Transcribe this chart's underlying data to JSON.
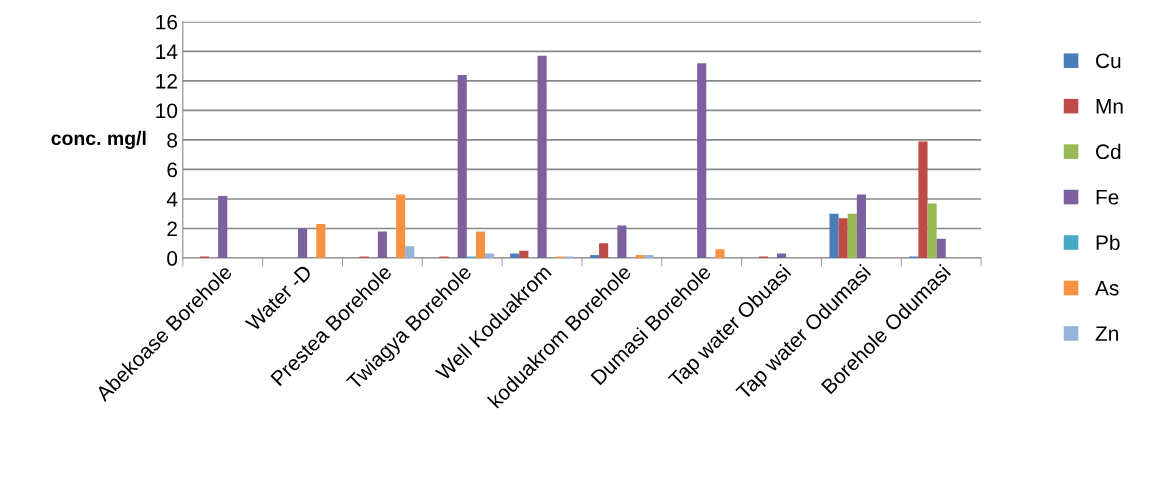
{
  "chart_data": {
    "type": "bar",
    "ylabel": "conc. mg/l",
    "categories": [
      "Abekoase Borehole",
      "Water -D",
      "Prestea Borehole",
      "Twiagya Borehole",
      "Well Koduakrom",
      "koduakrom Borehole",
      "Dumasi Borehole",
      "Tap water Obuasi",
      "Tap water Odumasi",
      "Borehole Odumasi"
    ],
    "series": [
      {
        "name": "Cu",
        "color": "#4a7ebb",
        "values": [
          0,
          0,
          0,
          0,
          0.3,
          0.2,
          0,
          0,
          3.0,
          0.1
        ]
      },
      {
        "name": "Mn",
        "color": "#be4b48",
        "values": [
          0.1,
          0,
          0.1,
          0.1,
          0.5,
          1.0,
          0,
          0.1,
          2.7,
          7.9
        ]
      },
      {
        "name": "Cd",
        "color": "#98b954",
        "values": [
          0,
          0,
          0,
          0,
          0,
          0,
          0,
          0,
          3.0,
          3.7
        ]
      },
      {
        "name": "Fe",
        "color": "#7d60a0",
        "values": [
          4.2,
          2.0,
          1.8,
          12.4,
          13.7,
          2.2,
          13.2,
          0.3,
          4.3,
          1.3
        ]
      },
      {
        "name": "Pb",
        "color": "#46aac5",
        "values": [
          0,
          0,
          0,
          0.1,
          0,
          0,
          0,
          0,
          0,
          0
        ]
      },
      {
        "name": "As",
        "color": "#f69240",
        "values": [
          0,
          2.3,
          4.3,
          1.8,
          0.1,
          0.2,
          0.6,
          0,
          0,
          0
        ]
      },
      {
        "name": "Zn",
        "color": "#95b3d7",
        "values": [
          0,
          0,
          0.8,
          0.3,
          0.1,
          0.2,
          0,
          0,
          0,
          0
        ]
      }
    ],
    "ylim": [
      0,
      16
    ],
    "yticks": [
      0,
      2,
      4,
      6,
      8,
      10,
      12,
      14,
      16
    ],
    "grid": "y",
    "legend": "right"
  }
}
